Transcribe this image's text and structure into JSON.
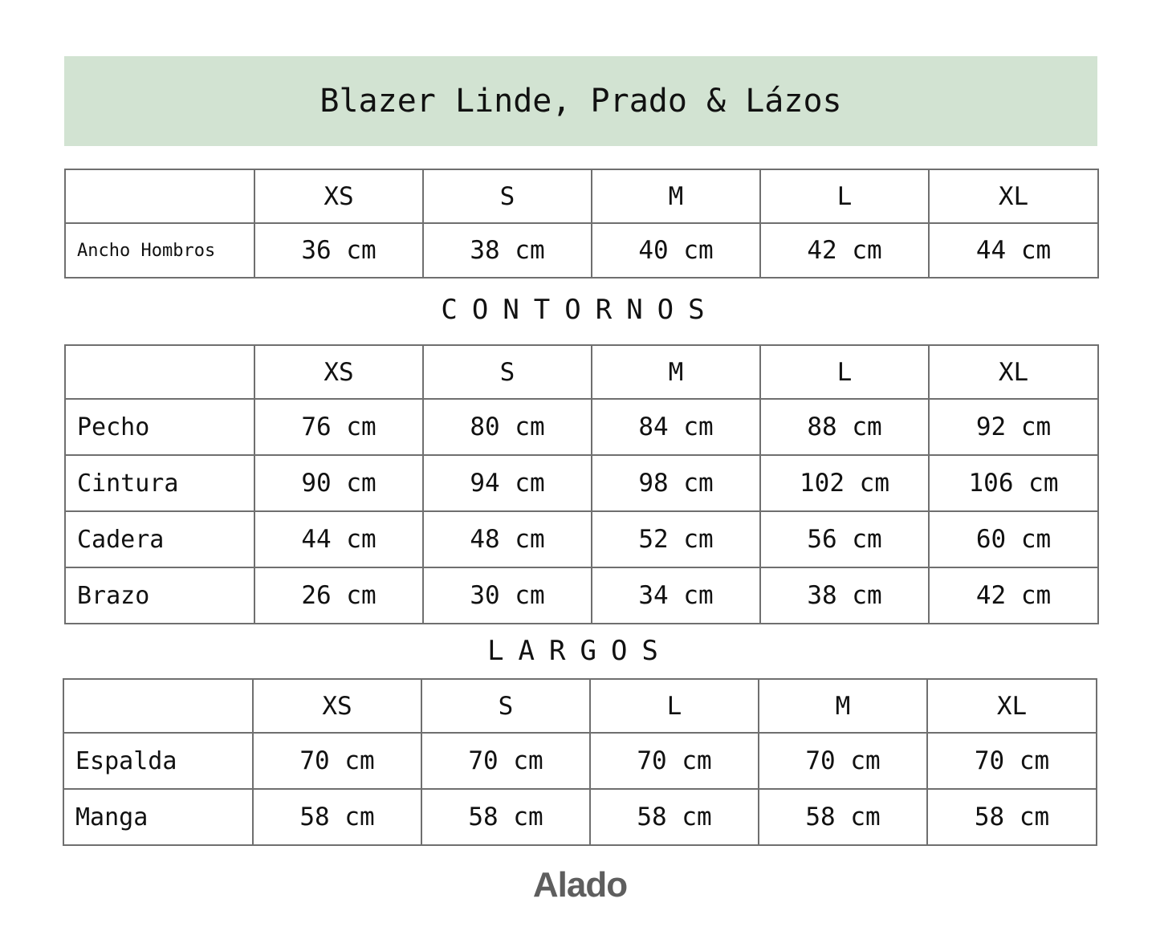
{
  "title": "Blazer Linde, Prado & Lázos",
  "tables": [
    {
      "headers": [
        "XS",
        "S",
        "M",
        "L",
        "XL"
      ],
      "rows": [
        {
          "label": "Ancho Hombros",
          "values": [
            "36 cm",
            "38 cm",
            "40 cm",
            "42 cm",
            "44 cm"
          ]
        }
      ]
    },
    {
      "section": "CONTORNOS",
      "headers": [
        "XS",
        "S",
        "M",
        "L",
        "XL"
      ],
      "rows": [
        {
          "label": "Pecho",
          "values": [
            "76 cm",
            "80 cm",
            "84 cm",
            "88 cm",
            "92 cm"
          ]
        },
        {
          "label": "Cintura",
          "values": [
            "90 cm",
            "94 cm",
            "98 cm",
            "102 cm",
            "106 cm"
          ]
        },
        {
          "label": "Cadera",
          "values": [
            "44 cm",
            "48 cm",
            "52 cm",
            "56 cm",
            "60 cm"
          ]
        },
        {
          "label": "Brazo",
          "values": [
            "26 cm",
            "30 cm",
            "34 cm",
            "38 cm",
            "42 cm"
          ]
        }
      ]
    },
    {
      "section": "LARGOS",
      "headers": [
        "XS",
        "S",
        "L",
        "M",
        "XL"
      ],
      "rows": [
        {
          "label": "Espalda",
          "values": [
            "70 cm",
            "70 cm",
            "70 cm",
            "70 cm",
            "70 cm"
          ]
        },
        {
          "label": "Manga",
          "values": [
            "58 cm",
            "58 cm",
            "58 cm",
            "58 cm",
            "58 cm"
          ]
        }
      ]
    }
  ],
  "logo": "Alado"
}
